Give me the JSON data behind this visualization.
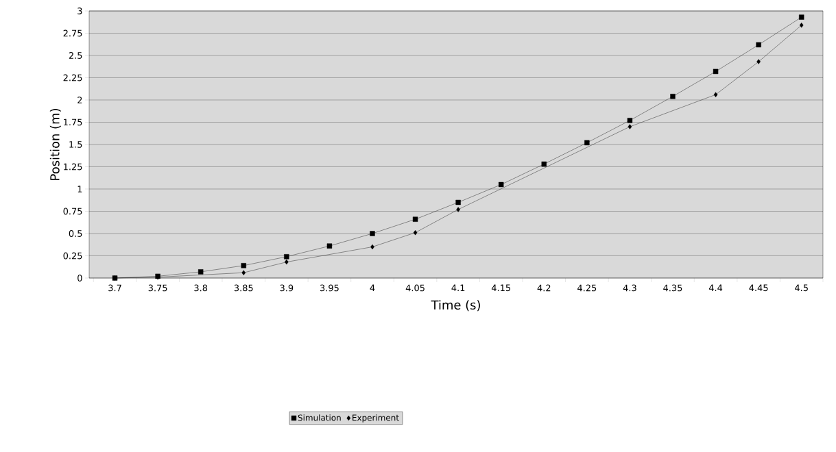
{
  "chart_data": {
    "type": "line",
    "xlabel": "Time (s)",
    "ylabel": "Position (m)",
    "categories": [
      "3.7",
      "3.75",
      "3.8",
      "3.85",
      "3.9",
      "3.95",
      "4",
      "4.05",
      "4.1",
      "4.15",
      "4.2",
      "4.25",
      "4.3",
      "4.35",
      "4.4",
      "4.45",
      "4.5"
    ],
    "series": [
      {
        "name": "Simulation",
        "color": "#000000",
        "marker": "square",
        "values": [
          0,
          0.02,
          0.07,
          0.14,
          0.24,
          0.36,
          0.5,
          0.66,
          0.85,
          1.05,
          1.28,
          1.52,
          1.77,
          2.04,
          2.32,
          2.62,
          2.93
        ]
      },
      {
        "name": "Experiment",
        "color": "#000000",
        "marker": "diamond",
        "values": [
          0,
          0.01,
          null,
          0.06,
          0.18,
          null,
          0.35,
          0.51,
          0.77,
          null,
          null,
          null,
          1.7,
          null,
          2.06,
          2.43,
          2.84
        ]
      }
    ],
    "ylim": [
      0,
      3
    ],
    "yticks": [
      0,
      0.25,
      0.5,
      0.75,
      1,
      1.25,
      1.5,
      1.75,
      2,
      2.25,
      2.5,
      2.75,
      3
    ],
    "grid": "y",
    "legend": "bottom",
    "line_style": "solid"
  }
}
